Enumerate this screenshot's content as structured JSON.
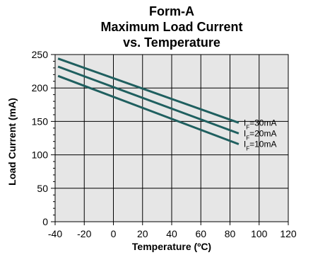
{
  "chart_data": {
    "type": "line",
    "title_lines": [
      "Form-A",
      "Maximum Load Current",
      "vs. Temperature"
    ],
    "xlabel": "Temperature (ºC)",
    "ylabel": "Load Current (mA)",
    "xlim": [
      -40,
      120
    ],
    "ylim": [
      0,
      250
    ],
    "x_ticks": [
      -40,
      -20,
      0,
      20,
      40,
      60,
      80,
      100,
      120
    ],
    "y_ticks": [
      0,
      50,
      100,
      150,
      200,
      250
    ],
    "grid": true,
    "legend": "labels at right end of each line",
    "colors": {
      "background": "#e6e6e6",
      "grid": "#000000",
      "axis": "#000000",
      "series": "#1f5f5f",
      "text": "#000000"
    },
    "series": [
      {
        "name_main": "I",
        "name_sub": "F",
        "name_suffix": "=30mA",
        "x": [
          -38,
          86
        ],
        "y": [
          244,
          148
        ]
      },
      {
        "name_main": "I",
        "name_sub": "F",
        "name_suffix": "=20mA",
        "x": [
          -38,
          86
        ],
        "y": [
          232,
          132
        ]
      },
      {
        "name_main": "I",
        "name_sub": "F",
        "name_suffix": "=10mA",
        "x": [
          -38,
          86
        ],
        "y": [
          218,
          116
        ]
      }
    ]
  }
}
